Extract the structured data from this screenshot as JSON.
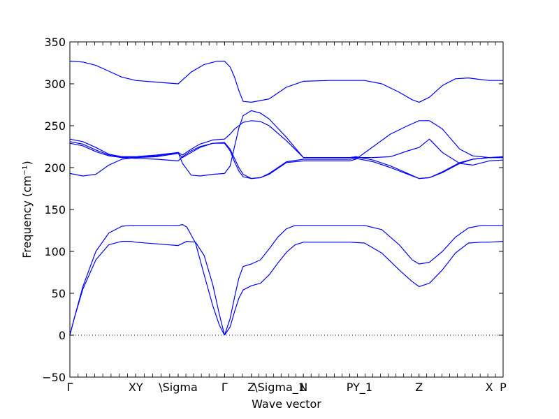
{
  "chart_data": {
    "type": "line",
    "title": "",
    "xlabel": "Wave vector",
    "ylabel": "Frequency (cm⁻¹)",
    "ylim": [
      -50,
      350
    ],
    "yticks": [
      -50,
      0,
      50,
      100,
      150,
      200,
      250,
      300,
      350
    ],
    "xlim": [
      0,
      1
    ],
    "grid": false,
    "legend": "none",
    "line_color": "#0000ff",
    "zero_line": {
      "value": 0,
      "style": "dotted",
      "color": "#0000ff"
    },
    "segment_boundaries": [
      0,
      0.152,
      0.25,
      0.357,
      0.419,
      0.539,
      0.646,
      0.806,
      1.0
    ],
    "xticks": [
      {
        "pos": 0.0,
        "label": "Γ"
      },
      {
        "pos": 0.152,
        "label": "XY"
      },
      {
        "pos": 0.25,
        "label": "\\Sigma"
      },
      {
        "pos": 0.357,
        "label": "Γ"
      },
      {
        "pos": 0.419,
        "label": "Z"
      },
      {
        "pos": 0.484,
        "label": "\\Sigma_1"
      },
      {
        "pos": 0.539,
        "label": "N"
      },
      {
        "pos": 0.646,
        "label": "P"
      },
      {
        "pos": 0.676,
        "label": "Y_1"
      },
      {
        "pos": 0.806,
        "label": "Z"
      },
      {
        "pos": 0.968,
        "label": "X"
      },
      {
        "pos": 1.0,
        "label": "P"
      }
    ],
    "series": [
      {
        "x": [
          0,
          0.01,
          0.03,
          0.06,
          0.09,
          0.12,
          0.14,
          0.152,
          0.2,
          0.25,
          0.27,
          0.29,
          0.31,
          0.33,
          0.345,
          0.357
        ],
        "y": [
          0,
          20,
          55,
          90,
          108,
          112,
          112,
          111,
          109,
          107,
          112,
          111,
          95,
          60,
          25,
          0
        ]
      },
      {
        "x": [
          0,
          0.01,
          0.03,
          0.06,
          0.09,
          0.12,
          0.14,
          0.152,
          0.2,
          0.25,
          0.26,
          0.27,
          0.29,
          0.31,
          0.33,
          0.345,
          0.357
        ],
        "y": [
          0,
          20,
          58,
          100,
          122,
          130,
          131,
          131,
          131,
          131,
          132,
          129,
          110,
          72,
          35,
          12,
          0
        ]
      },
      {
        "x": [
          0.357,
          0.37,
          0.38,
          0.39,
          0.4,
          0.419,
          0.44,
          0.46,
          0.48,
          0.5,
          0.52,
          0.539,
          0.58,
          0.646,
          0.68,
          0.72,
          0.76,
          0.79,
          0.806,
          0.83,
          0.86,
          0.89,
          0.92,
          0.95,
          0.968,
          1.0
        ],
        "y": [
          0,
          10,
          28,
          44,
          54,
          59,
          62,
          72,
          86,
          99,
          108,
          111,
          111,
          111,
          110,
          98,
          78,
          64,
          58,
          62,
          78,
          98,
          110,
          111,
          111,
          112
        ]
      },
      {
        "x": [
          0.357,
          0.37,
          0.38,
          0.39,
          0.4,
          0.419,
          0.44,
          0.46,
          0.48,
          0.5,
          0.52,
          0.539,
          0.58,
          0.646,
          0.68,
          0.72,
          0.76,
          0.79,
          0.806,
          0.83,
          0.86,
          0.89,
          0.92,
          0.95,
          0.968,
          1.0
        ],
        "y": [
          0,
          20,
          45,
          68,
          82,
          85,
          90,
          103,
          117,
          127,
          131,
          131,
          131,
          131,
          131,
          126,
          108,
          90,
          85,
          87,
          100,
          117,
          128,
          131,
          131,
          131
        ]
      },
      {
        "x": [
          0,
          0.03,
          0.06,
          0.09,
          0.12,
          0.152,
          0.2,
          0.25,
          0.26,
          0.28,
          0.3,
          0.33,
          0.357,
          0.37,
          0.38,
          0.39,
          0.4,
          0.419,
          0.44,
          0.46,
          0.5,
          0.539,
          0.6,
          0.646,
          0.66,
          0.7,
          0.74,
          0.78,
          0.806,
          0.83,
          0.86,
          0.9,
          0.93,
          0.968,
          1.0
        ],
        "y": [
          193,
          190,
          192,
          203,
          210,
          212,
          214,
          218,
          205,
          191,
          190,
          192,
          193,
          202,
          225,
          247,
          262,
          268,
          265,
          258,
          236,
          212,
          212,
          212,
          212,
          212,
          213,
          220,
          224,
          234,
          218,
          205,
          203,
          208,
          209
        ]
      },
      {
        "x": [
          0,
          0.03,
          0.06,
          0.09,
          0.12,
          0.152,
          0.2,
          0.25,
          0.26,
          0.28,
          0.3,
          0.33,
          0.357,
          0.37,
          0.38,
          0.39,
          0.4,
          0.419,
          0.44,
          0.46,
          0.5,
          0.539,
          0.6,
          0.646,
          0.66,
          0.7,
          0.74,
          0.78,
          0.806,
          0.83,
          0.86,
          0.9,
          0.93,
          0.968,
          1.0
        ],
        "y": [
          229,
          226,
          219,
          214,
          212,
          211,
          210,
          208,
          213,
          220,
          225,
          229,
          229,
          220,
          207,
          196,
          189,
          187,
          188,
          192,
          206,
          208,
          208,
          208,
          210,
          225,
          240,
          250,
          256,
          256,
          246,
          222,
          214,
          212,
          212
        ]
      },
      {
        "x": [
          0,
          0.03,
          0.06,
          0.09,
          0.12,
          0.152,
          0.2,
          0.25,
          0.26,
          0.28,
          0.3,
          0.33,
          0.357,
          0.37,
          0.38,
          0.39,
          0.4,
          0.419,
          0.44,
          0.46,
          0.5,
          0.539,
          0.6,
          0.646,
          0.66,
          0.7,
          0.74,
          0.78,
          0.806,
          0.83,
          0.86,
          0.9,
          0.93,
          0.968,
          1.0
        ],
        "y": [
          234,
          231,
          224,
          216,
          213,
          213,
          215,
          218,
          215,
          222,
          228,
          233,
          234,
          240,
          246,
          250,
          254,
          256,
          255,
          250,
          232,
          212,
          212,
          212,
          213,
          209,
          202,
          193,
          187,
          188,
          194,
          205,
          210,
          212,
          213
        ]
      },
      {
        "x": [
          0,
          0.03,
          0.06,
          0.09,
          0.12,
          0.152,
          0.2,
          0.25,
          0.26,
          0.28,
          0.3,
          0.33,
          0.357,
          0.37,
          0.38,
          0.39,
          0.4,
          0.419,
          0.44,
          0.46,
          0.5,
          0.539,
          0.6,
          0.646,
          0.66,
          0.7,
          0.74,
          0.78,
          0.806,
          0.83,
          0.86,
          0.9,
          0.93,
          0.968,
          1.0
        ],
        "y": [
          231,
          228,
          221,
          215,
          212,
          212,
          213,
          217,
          212,
          218,
          224,
          229,
          230,
          222,
          211,
          200,
          192,
          187,
          188,
          193,
          207,
          210,
          210,
          210,
          211,
          207,
          200,
          192,
          187,
          188,
          195,
          206,
          210,
          212,
          212
        ]
      },
      {
        "x": [
          0,
          0.03,
          0.06,
          0.09,
          0.12,
          0.152,
          0.2,
          0.25,
          0.28,
          0.31,
          0.34,
          0.357,
          0.37,
          0.38,
          0.39,
          0.4,
          0.419,
          0.46,
          0.5,
          0.539,
          0.6,
          0.646,
          0.68,
          0.72,
          0.76,
          0.79,
          0.806,
          0.83,
          0.86,
          0.89,
          0.92,
          0.95,
          0.968,
          1.0
        ],
        "y": [
          327,
          326,
          322,
          315,
          308,
          304,
          302,
          300,
          314,
          323,
          327,
          327,
          320,
          308,
          292,
          279,
          278,
          282,
          296,
          303,
          304,
          304,
          304,
          300,
          290,
          281,
          278,
          284,
          298,
          306,
          307,
          305,
          304,
          304
        ]
      }
    ]
  }
}
